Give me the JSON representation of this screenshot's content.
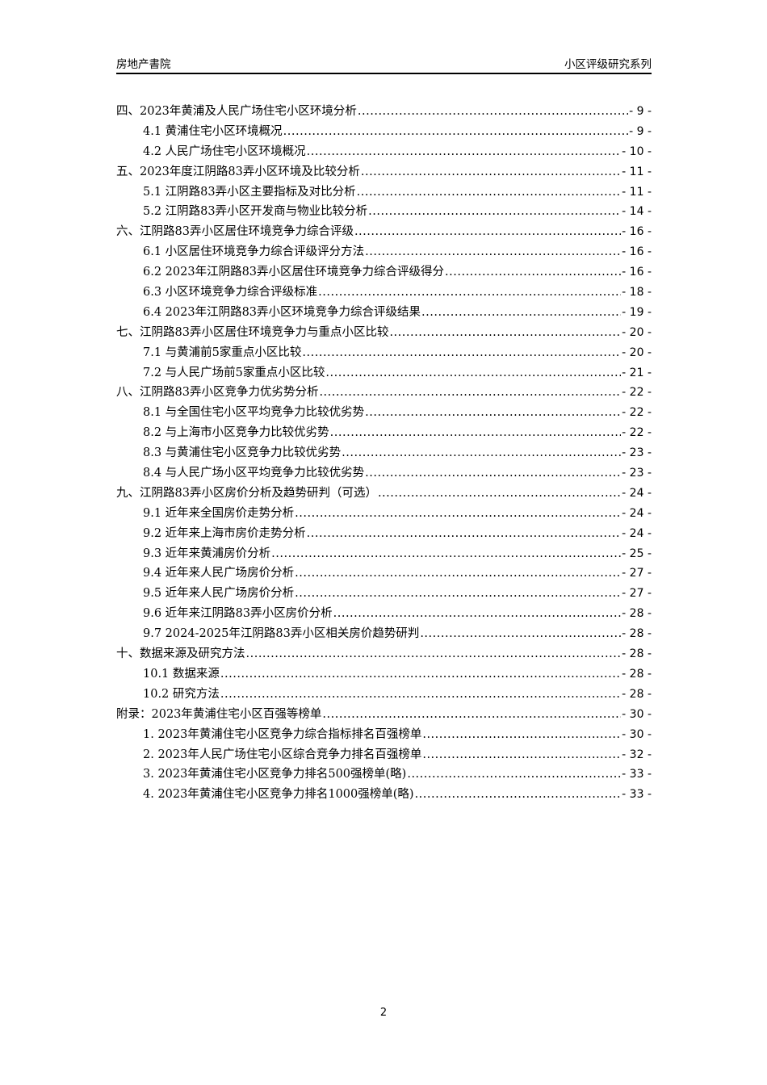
{
  "header": {
    "left": "房地产書院",
    "right": "小区评级研究系列"
  },
  "toc": [
    {
      "level": 1,
      "title": "四、2023年黄浦及人民广场住宅小区环境分析",
      "page": "- 9 -"
    },
    {
      "level": 2,
      "title": "4.1 黄浦住宅小区环境概况",
      "page": "- 9 -"
    },
    {
      "level": 2,
      "title": "4.2 人民广场住宅小区环境概况",
      "page": "- 10 -"
    },
    {
      "level": 1,
      "title": "五、2023年度江阴路83弄小区环境及比较分析",
      "page": "- 11 -"
    },
    {
      "level": 2,
      "title": "5.1 江阴路83弄小区主要指标及对比分析",
      "page": "- 11 -"
    },
    {
      "level": 2,
      "title": "5.2 江阴路83弄小区开发商与物业比较分析",
      "page": "- 14 -"
    },
    {
      "level": 1,
      "title": "六、江阴路83弄小区居住环境竞争力综合评级",
      "page": "- 16 -"
    },
    {
      "level": 2,
      "title": "6.1 小区居住环境竞争力综合评级评分方法",
      "page": "- 16 -"
    },
    {
      "level": 2,
      "title": "6.2 2023年江阴路83弄小区居住环境竞争力综合评级得分",
      "page": "- 16 -"
    },
    {
      "level": 2,
      "title": "6.3 小区环境竞争力综合评级标准",
      "page": "- 18 -"
    },
    {
      "level": 2,
      "title": "6.4 2023年江阴路83弄小区环境竞争力综合评级结果",
      "page": "- 19 -"
    },
    {
      "level": 1,
      "title": "七、江阴路83弄小区居住环境竞争力与重点小区比较",
      "page": "- 20 -"
    },
    {
      "level": 2,
      "title": "7.1 与黄浦前5家重点小区比较",
      "page": "- 20 -"
    },
    {
      "level": 2,
      "title": "7.2 与人民广场前5家重点小区比较",
      "page": "- 21 -"
    },
    {
      "level": 1,
      "title": "八、江阴路83弄小区竞争力优劣势分析",
      "page": "- 22 -"
    },
    {
      "level": 2,
      "title": "8.1 与全国住宅小区平均竞争力比较优劣势",
      "page": "- 22 -"
    },
    {
      "level": 2,
      "title": "8.2 与上海市小区竞争力比较优劣势",
      "page": "- 22 -"
    },
    {
      "level": 2,
      "title": "8.3 与黄浦住宅小区竞争力比较优劣势",
      "page": "- 23 -"
    },
    {
      "level": 2,
      "title": "8.4 与人民广场小区平均竞争力比较优劣势",
      "page": "- 23 -"
    },
    {
      "level": 1,
      "title": "九、江阴路83弄小区房价分析及趋势研判（可选）",
      "page": "- 24 -"
    },
    {
      "level": 2,
      "title": "9.1 近年来全国房价走势分析",
      "page": "- 24 -"
    },
    {
      "level": 2,
      "title": "9.2 近年来上海市房价走势分析",
      "page": "- 24 -"
    },
    {
      "level": 2,
      "title": "9.3 近年来黄浦房价分析",
      "page": "- 25 -"
    },
    {
      "level": 2,
      "title": "9.4 近年来人民广场房价分析",
      "page": "- 27 -"
    },
    {
      "level": 2,
      "title": "9.5 近年来人民广场房价分析",
      "page": "- 27 -"
    },
    {
      "level": 2,
      "title": "9.6 近年来江阴路83弄小区房价分析",
      "page": "- 28 -"
    },
    {
      "level": 2,
      "title": "9.7 2024-2025年江阴路83弄小区相关房价趋势研判",
      "page": "- 28 -"
    },
    {
      "level": 1,
      "title": "十、数据来源及研究方法",
      "page": "- 28 -"
    },
    {
      "level": 2,
      "title": "10.1 数据来源",
      "page": "- 28 -"
    },
    {
      "level": 2,
      "title": "10.2 研究方法",
      "page": "- 28 -"
    },
    {
      "level": 1,
      "title": "附录：2023年黄浦住宅小区百强等榜单",
      "page": "- 30 -"
    },
    {
      "level": 2,
      "title": "1. 2023年黄浦住宅小区竞争力综合指标排名百强榜单",
      "page": "- 30 -"
    },
    {
      "level": 2,
      "title": "2. 2023年人民广场住宅小区综合竞争力排名百强榜单",
      "page": "- 32 -"
    },
    {
      "level": 2,
      "title": "3. 2023年黄浦住宅小区竞争力排名500强榜单(略)",
      "page": "- 33 -"
    },
    {
      "level": 2,
      "title": "4. 2023年黄浦住宅小区竞争力排名1000强榜单(略)",
      "page": "- 33 -"
    }
  ],
  "footer": {
    "page_number": "2"
  }
}
